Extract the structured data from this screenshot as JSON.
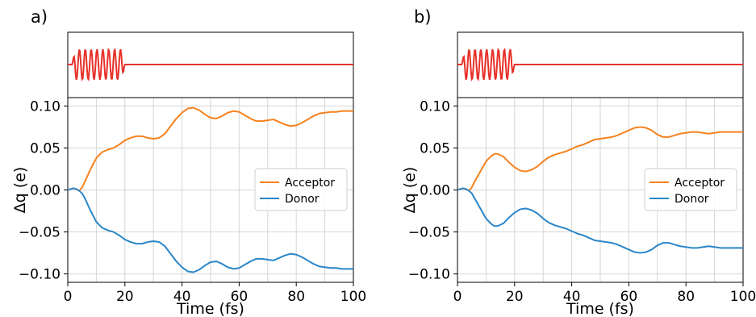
{
  "colors": {
    "pulse": "#e8312a",
    "acceptor": "#f5821f",
    "donor": "#2b86c8",
    "grid": "#d6d6d6"
  },
  "chart_data": [
    {
      "panel_label": "a)",
      "type": "line",
      "xlabel": "Time (fs)",
      "ylabel": "Δq (e)",
      "xlim": [
        0,
        100
      ],
      "ylim": [
        -0.11,
        0.11
      ],
      "xticks": [
        0,
        20,
        40,
        60,
        80,
        100
      ],
      "yticks": [
        -0.1,
        -0.05,
        0.0,
        0.05,
        0.1
      ],
      "xtick_labels": [
        "0",
        "20",
        "40",
        "60",
        "80",
        "100"
      ],
      "ytick_labels": [
        "−0.10",
        "−0.05",
        "0.00",
        "0.05",
        "0.10"
      ],
      "grid": true,
      "legend": {
        "position": "center-right",
        "entries": [
          "Acceptor",
          "Donor"
        ]
      },
      "pulse": {
        "start": 1.5,
        "end": 20,
        "cycles": 9
      },
      "series": [
        {
          "name": "Acceptor",
          "x": [
            0,
            1,
            2,
            3,
            4,
            5,
            6,
            8,
            10,
            12,
            14,
            16,
            18,
            20,
            22,
            24,
            26,
            28,
            30,
            32,
            34,
            36,
            38,
            40,
            42,
            44,
            46,
            48,
            50,
            52,
            54,
            56,
            58,
            60,
            62,
            64,
            66,
            68,
            70,
            72,
            74,
            76,
            78,
            80,
            82,
            84,
            86,
            88,
            90,
            92,
            94,
            96,
            98,
            100
          ],
          "values": [
            0,
            0.001,
            0.002,
            0.001,
            -0.001,
            0.003,
            0.01,
            0.025,
            0.038,
            0.045,
            0.048,
            0.05,
            0.054,
            0.059,
            0.062,
            0.064,
            0.064,
            0.062,
            0.061,
            0.062,
            0.067,
            0.076,
            0.085,
            0.092,
            0.097,
            0.098,
            0.095,
            0.09,
            0.086,
            0.085,
            0.088,
            0.092,
            0.094,
            0.093,
            0.089,
            0.085,
            0.082,
            0.082,
            0.083,
            0.084,
            0.081,
            0.078,
            0.076,
            0.077,
            0.08,
            0.084,
            0.088,
            0.091,
            0.092,
            0.093,
            0.093,
            0.094,
            0.094,
            0.094
          ]
        },
        {
          "name": "Donor",
          "x": [
            0,
            1,
            2,
            3,
            4,
            5,
            6,
            8,
            10,
            12,
            14,
            16,
            18,
            20,
            22,
            24,
            26,
            28,
            30,
            32,
            34,
            36,
            38,
            40,
            42,
            44,
            46,
            48,
            50,
            52,
            54,
            56,
            58,
            60,
            62,
            64,
            66,
            68,
            70,
            72,
            74,
            76,
            78,
            80,
            82,
            84,
            86,
            88,
            90,
            92,
            94,
            96,
            98,
            100
          ],
          "values": [
            0,
            0.001,
            0.002,
            0.001,
            -0.001,
            -0.004,
            -0.01,
            -0.025,
            -0.038,
            -0.045,
            -0.048,
            -0.05,
            -0.054,
            -0.059,
            -0.062,
            -0.064,
            -0.064,
            -0.062,
            -0.061,
            -0.062,
            -0.067,
            -0.076,
            -0.085,
            -0.092,
            -0.097,
            -0.098,
            -0.095,
            -0.09,
            -0.086,
            -0.085,
            -0.088,
            -0.092,
            -0.094,
            -0.093,
            -0.089,
            -0.085,
            -0.082,
            -0.082,
            -0.083,
            -0.084,
            -0.081,
            -0.078,
            -0.076,
            -0.077,
            -0.08,
            -0.084,
            -0.088,
            -0.091,
            -0.092,
            -0.093,
            -0.093,
            -0.094,
            -0.094,
            -0.094
          ]
        }
      ]
    },
    {
      "panel_label": "b)",
      "type": "line",
      "xlabel": "Time (fs)",
      "ylabel": "Δq (e)",
      "xlim": [
        0,
        100
      ],
      "ylim": [
        -0.11,
        0.11
      ],
      "xticks": [
        0,
        20,
        40,
        60,
        80,
        100
      ],
      "yticks": [
        -0.1,
        -0.05,
        0.0,
        0.05,
        0.1
      ],
      "xtick_labels": [
        "0",
        "20",
        "40",
        "60",
        "80",
        "100"
      ],
      "ytick_labels": [
        "−0.10",
        "−0.05",
        "0.00",
        "0.05",
        "0.10"
      ],
      "grid": true,
      "legend": {
        "position": "center-right",
        "entries": [
          "Acceptor",
          "Donor"
        ]
      },
      "pulse": {
        "start": 1.5,
        "end": 20,
        "cycles": 9
      },
      "series": [
        {
          "name": "Acceptor",
          "x": [
            0,
            1,
            2,
            3,
            4,
            5,
            6,
            8,
            10,
            12,
            13,
            14,
            16,
            18,
            20,
            22,
            24,
            26,
            28,
            30,
            32,
            34,
            36,
            38,
            40,
            42,
            44,
            46,
            48,
            50,
            52,
            54,
            56,
            58,
            60,
            62,
            64,
            66,
            68,
            70,
            72,
            74,
            76,
            78,
            80,
            82,
            84,
            86,
            88,
            90,
            92,
            94,
            96,
            98,
            100
          ],
          "values": [
            0,
            0.001,
            0.002,
            0.001,
            -0.001,
            0.003,
            0.01,
            0.022,
            0.034,
            0.041,
            0.043,
            0.043,
            0.04,
            0.033,
            0.027,
            0.023,
            0.022,
            0.024,
            0.028,
            0.034,
            0.039,
            0.042,
            0.044,
            0.046,
            0.049,
            0.052,
            0.054,
            0.057,
            0.06,
            0.061,
            0.062,
            0.063,
            0.065,
            0.068,
            0.071,
            0.074,
            0.075,
            0.074,
            0.071,
            0.066,
            0.063,
            0.063,
            0.065,
            0.067,
            0.068,
            0.069,
            0.069,
            0.068,
            0.067,
            0.068,
            0.069,
            0.069,
            0.069,
            0.069,
            0.069
          ]
        },
        {
          "name": "Donor",
          "x": [
            0,
            1,
            2,
            3,
            4,
            5,
            6,
            8,
            10,
            12,
            13,
            14,
            16,
            18,
            20,
            22,
            24,
            26,
            28,
            30,
            32,
            34,
            36,
            38,
            40,
            42,
            44,
            46,
            48,
            50,
            52,
            54,
            56,
            58,
            60,
            62,
            64,
            66,
            68,
            70,
            72,
            74,
            76,
            78,
            80,
            82,
            84,
            86,
            88,
            90,
            92,
            94,
            96,
            98,
            100
          ],
          "values": [
            0,
            0.001,
            0.002,
            0.001,
            -0.001,
            -0.004,
            -0.01,
            -0.022,
            -0.034,
            -0.041,
            -0.043,
            -0.043,
            -0.04,
            -0.033,
            -0.027,
            -0.023,
            -0.022,
            -0.024,
            -0.028,
            -0.034,
            -0.039,
            -0.042,
            -0.044,
            -0.046,
            -0.049,
            -0.052,
            -0.054,
            -0.057,
            -0.06,
            -0.061,
            -0.062,
            -0.063,
            -0.065,
            -0.068,
            -0.071,
            -0.074,
            -0.075,
            -0.074,
            -0.071,
            -0.066,
            -0.063,
            -0.063,
            -0.065,
            -0.067,
            -0.068,
            -0.069,
            -0.069,
            -0.068,
            -0.067,
            -0.068,
            -0.069,
            -0.069,
            -0.069,
            -0.069,
            -0.069
          ]
        }
      ]
    }
  ]
}
